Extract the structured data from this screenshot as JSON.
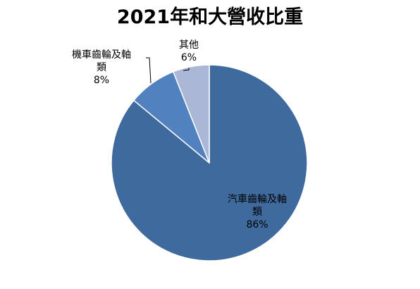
{
  "chart_data": {
    "type": "pie",
    "title": "2021年和大營收比重",
    "categories": [
      "汽車齒輪及軸類",
      "機車齒輪及軸類",
      "其他"
    ],
    "values": [
      86,
      8,
      6
    ],
    "value_labels": [
      "86%",
      "8%",
      "6%"
    ],
    "label_lines": [
      [
        "汽車齒輪及軸",
        "類",
        "86%"
      ],
      [
        "機車齒輪及軸",
        "類",
        "8%"
      ],
      [
        "其他",
        "6%"
      ]
    ],
    "colors": [
      "#3f6a9e",
      "#5181bf",
      "#aab7d6"
    ],
    "start_angle": "12 o'clock",
    "direction": "clockwise",
    "legend": "none",
    "data_labels": "category name and percentage"
  }
}
